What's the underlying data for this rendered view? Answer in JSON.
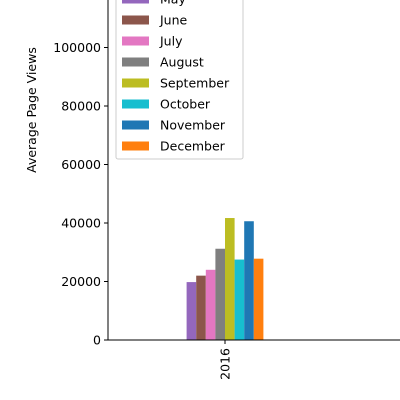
{
  "chart_data": {
    "type": "bar",
    "categories": [
      "2016"
    ],
    "series": [
      {
        "name": "May",
        "color": "#9467bd",
        "values": [
          19800
        ]
      },
      {
        "name": "June",
        "color": "#8c564b",
        "values": [
          22000
        ]
      },
      {
        "name": "July",
        "color": "#e377c2",
        "values": [
          24000
        ]
      },
      {
        "name": "August",
        "color": "#7f7f7f",
        "values": [
          31200
        ]
      },
      {
        "name": "September",
        "color": "#bcbd22",
        "values": [
          41700
        ]
      },
      {
        "name": "October",
        "color": "#17becf",
        "values": [
          27500
        ]
      },
      {
        "name": "November",
        "color": "#1f77b4",
        "values": [
          40600
        ]
      },
      {
        "name": "December",
        "color": "#ff7f0e",
        "values": [
          27800
        ]
      }
    ],
    "ylabel": "Average Page Views",
    "xlabel": "",
    "ylim": [
      0,
      120000
    ],
    "yticks": [
      0,
      20000,
      40000,
      60000,
      80000,
      100000
    ],
    "ytick_labels": [
      "0",
      "20000",
      "40000",
      "60000",
      "80000",
      "100000"
    ],
    "grid": false,
    "legend_position": "top-left"
  }
}
